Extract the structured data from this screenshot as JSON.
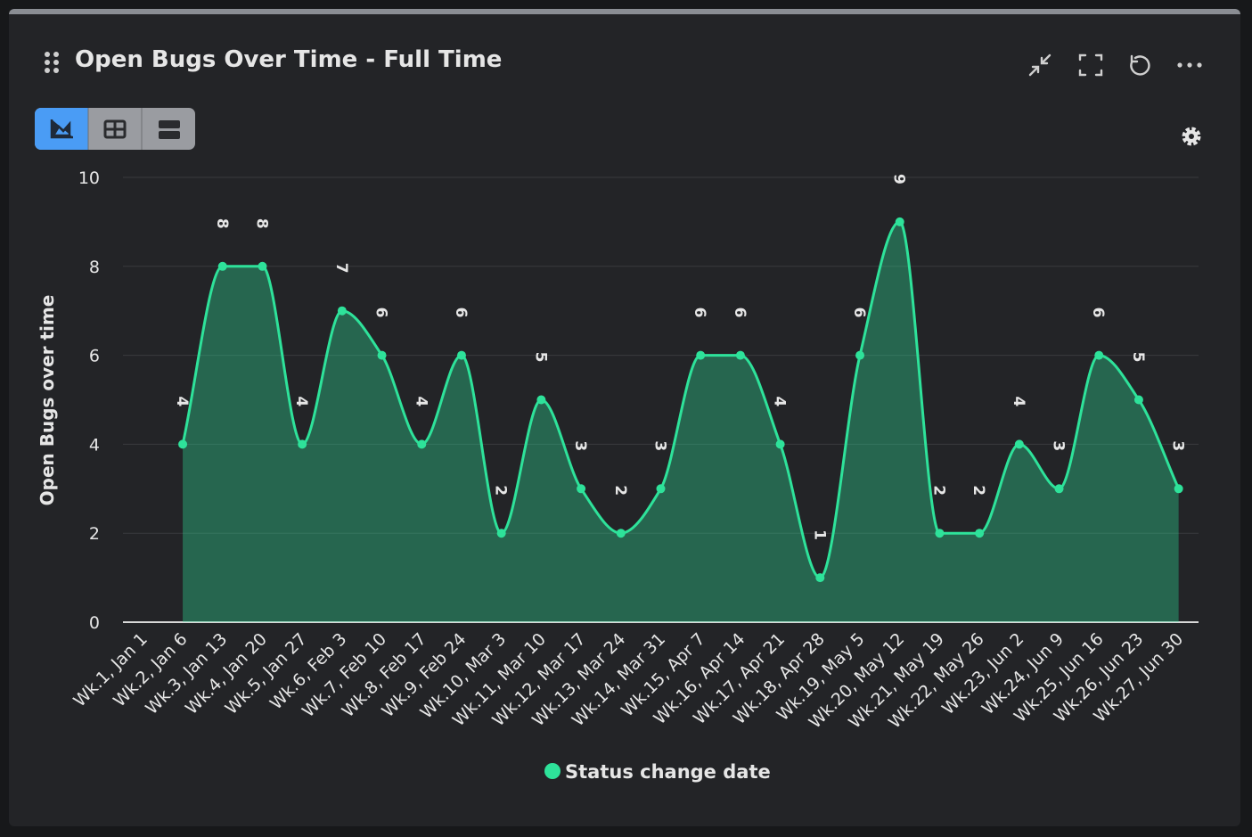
{
  "header": {
    "title": "Open Bugs Over Time - Full Time"
  },
  "chart_data": {
    "type": "area",
    "y_label": "Open Bugs over time",
    "categories": [
      "Wk.1, Jan 1",
      "Wk.2, Jan 6",
      "Wk.3, Jan 13",
      "Wk.4, Jan 20",
      "Wk.5, Jan 27",
      "Wk.6, Feb 3",
      "Wk.7, Feb 10",
      "Wk.8, Feb 17",
      "Wk.9, Feb 24",
      "Wk.10, Mar 3",
      "Wk.11, Mar 10",
      "Wk.12, Mar 17",
      "Wk.13, Mar 24",
      "Wk.14, Mar 31",
      "Wk.15, Apr 7",
      "Wk.16, Apr 14",
      "Wk.17, Apr 21",
      "Wk.18, Apr 28",
      "Wk.19, May 5",
      "Wk.20, May 12",
      "Wk.21, May 19",
      "Wk.22, May 26",
      "Wk.23, Jun 2",
      "Wk.24, Jun 9",
      "Wk.25, Jun 16",
      "Wk.26, Jun 23",
      "Wk.27, Jun 30"
    ],
    "series": [
      {
        "name": "Status change date",
        "color": "#2ee29a",
        "values": [
          null,
          4,
          8,
          8,
          4,
          7,
          6,
          4,
          6,
          2,
          5,
          3,
          2,
          3,
          6,
          6,
          4,
          1,
          6,
          9,
          2,
          2,
          4,
          3,
          6,
          5,
          3
        ]
      }
    ],
    "ylim": [
      0,
      10
    ],
    "yticks": [
      0,
      2,
      4,
      6,
      8,
      10
    ],
    "grid": true,
    "legend": "bottom"
  }
}
